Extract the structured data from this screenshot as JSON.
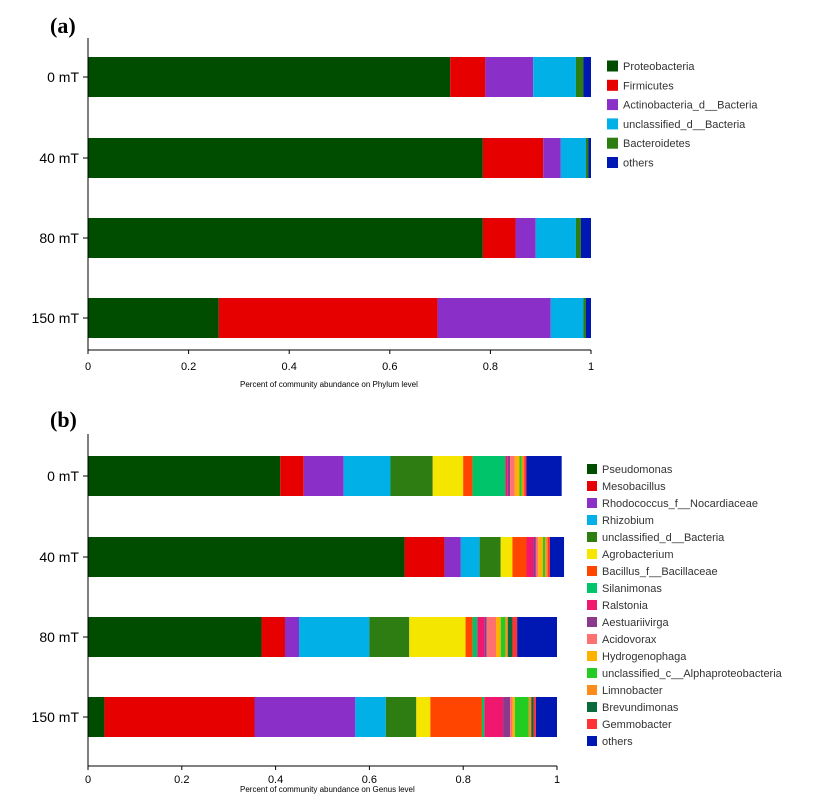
{
  "chart_data": [
    {
      "type": "bar",
      "orientation": "horizontal",
      "stacked": true,
      "panel_label": "(a)",
      "xlabel": "Percent of community abundance on Phylum level",
      "xlim": [
        0,
        1
      ],
      "xticks": [
        "0",
        "0.2",
        "0.4",
        "0.6",
        "0.8",
        "1"
      ],
      "categories": [
        "0 mT",
        "40 mT",
        "80 mT",
        "150 mT"
      ],
      "series": [
        {
          "name": "Proteobacteria",
          "color": "#004d00",
          "values": [
            0.72,
            0.785,
            0.785,
            0.26
          ]
        },
        {
          "name": "Firmicutes",
          "color": "#e60000",
          "values": [
            0.07,
            0.12,
            0.065,
            0.435
          ]
        },
        {
          "name": "Actinobacteria_d__Bacteria",
          "color": "#8b2fc9",
          "values": [
            0.095,
            0.035,
            0.04,
            0.225
          ]
        },
        {
          "name": "unclassified_d__Bacteria",
          "color": "#00b0e6",
          "values": [
            0.085,
            0.05,
            0.08,
            0.065
          ]
        },
        {
          "name": "Bacteroidetes",
          "color": "#2e7d12",
          "values": [
            0.015,
            0.005,
            0.01,
            0.005
          ]
        },
        {
          "name": "others",
          "color": "#0018b3",
          "values": [
            0.015,
            0.005,
            0.02,
            0.01
          ]
        }
      ]
    },
    {
      "type": "bar",
      "orientation": "horizontal",
      "stacked": true,
      "panel_label": "(b)",
      "xlabel": "Percent of community abundance on Genus level",
      "xlim": [
        0,
        1
      ],
      "xticks": [
        "0",
        "0.2",
        "0.4",
        "0.6",
        "0.8",
        "1"
      ],
      "categories": [
        "0 mT",
        "40 mT",
        "80 mT",
        "150 mT"
      ],
      "series": [
        {
          "name": "Pseudomonas",
          "color": "#004d00",
          "values": [
            0.41,
            0.675,
            0.37,
            0.035
          ]
        },
        {
          "name": "Mesobacillus",
          "color": "#e60000",
          "values": [
            0.05,
            0.085,
            0.05,
            0.32
          ]
        },
        {
          "name": "Rhodococcus_f__Nocardiaceae",
          "color": "#8b2fc9",
          "values": [
            0.085,
            0.035,
            0.03,
            0.215
          ]
        },
        {
          "name": "Rhizobium",
          "color": "#00b0e6",
          "values": [
            0.1,
            0.04,
            0.15,
            0.065
          ]
        },
        {
          "name": "unclassified_d__Bacteria",
          "color": "#2e7d12",
          "values": [
            0.09,
            0.045,
            0.085,
            0.065
          ]
        },
        {
          "name": "Agrobacterium",
          "color": "#f5e600",
          "values": [
            0.065,
            0.025,
            0.12,
            0.03
          ]
        },
        {
          "name": "Bacillus_f__Bacillaceae",
          "color": "#ff4500",
          "values": [
            0.02,
            0.03,
            0.015,
            0.11
          ]
        },
        {
          "name": "Silanimonas",
          "color": "#00c46a",
          "values": [
            0.07,
            0.0,
            0.01,
            0.005
          ]
        },
        {
          "name": "Ralstonia",
          "color": "#f0176e",
          "values": [
            0.005,
            0.015,
            0.015,
            0.04
          ]
        },
        {
          "name": "Aestuariivirga",
          "color": "#8b3a8b",
          "values": [
            0.005,
            0.005,
            0.005,
            0.015
          ]
        },
        {
          "name": "Acidovorax",
          "color": "#ff7070",
          "values": [
            0.01,
            0.005,
            0.02,
            0.005
          ]
        },
        {
          "name": "Hydrogenophaga",
          "color": "#ffb000",
          "values": [
            0.01,
            0.01,
            0.01,
            0.005
          ]
        },
        {
          "name": "unclassified_c__Alphaproteobacteria",
          "color": "#22cc22",
          "values": [
            0.005,
            0.005,
            0.01,
            0.03
          ]
        },
        {
          "name": "Limnobacter",
          "color": "#ff8c1a",
          "values": [
            0.005,
            0.005,
            0.005,
            0.005
          ]
        },
        {
          "name": "Brevundimonas",
          "color": "#0a6b3a",
          "values": [
            0.0,
            0.0,
            0.01,
            0.005
          ]
        },
        {
          "name": "Gemmobacter",
          "color": "#ff3333",
          "values": [
            0.005,
            0.005,
            0.01,
            0.005
          ]
        },
        {
          "name": "others",
          "color": "#0018b3",
          "values": [
            0.075,
            0.03,
            0.085,
            0.045
          ]
        }
      ]
    }
  ]
}
